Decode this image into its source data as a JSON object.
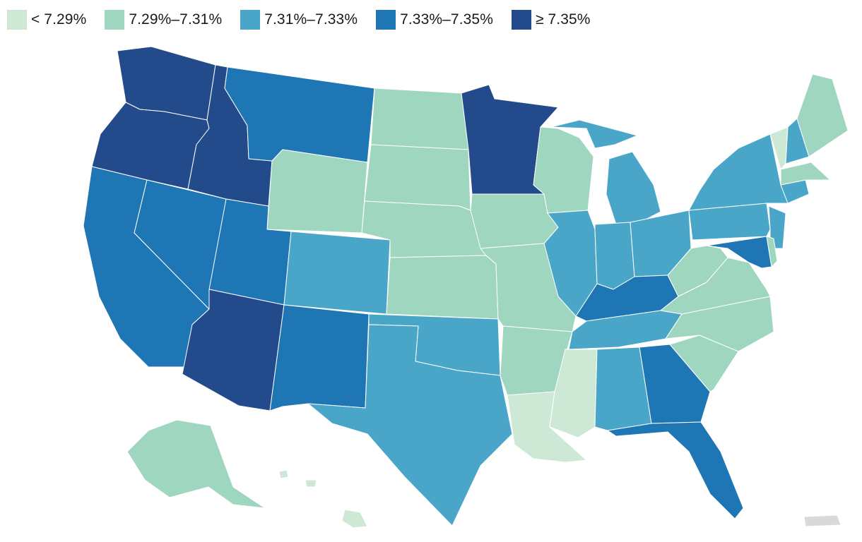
{
  "legend": {
    "bins": [
      {
        "label": "< 7.29%",
        "color": "#cde9d6"
      },
      {
        "label": "7.29%–7.31%",
        "color": "#9fd6c0"
      },
      {
        "label": "7.31%–7.33%",
        "color": "#4aa6c9"
      },
      {
        "label": "7.33%–7.35%",
        "color": "#1f76b4"
      },
      {
        "label": "≥ 7.35%",
        "color": "#234a8b"
      }
    ]
  },
  "no_data_color": "#d9d9d9",
  "chart_data": {
    "type": "choropleth",
    "region": "United States",
    "legend_position": "top-left",
    "categories": [
      "< 7.29%",
      "7.29%–7.31%",
      "7.31%–7.33%",
      "7.33%–7.35%",
      "≥ 7.35%"
    ],
    "states": {
      "WA": 4,
      "OR": 4,
      "ID": 4,
      "MN": 4,
      "AZ": 4,
      "MT": 3,
      "NV": 3,
      "CA": 3,
      "UT": 3,
      "NM": 3,
      "KY": 3,
      "GA": 3,
      "FL": 3,
      "MD": 3,
      "CO": 2,
      "TX": 2,
      "OK": 2,
      "IL": 2,
      "IN": 2,
      "OH": 2,
      "MI": 2,
      "TN": 2,
      "AL": 2,
      "PA": 2,
      "NY": 2,
      "NJ": 2,
      "CT": 2,
      "NH": 2,
      "ND": 1,
      "SD": 1,
      "NE": 1,
      "KS": 1,
      "WY": 1,
      "IA": 1,
      "MO": 1,
      "AR": 1,
      "WI": 1,
      "WV": 1,
      "VA": 1,
      "NC": 1,
      "SC": 1,
      "ME": 1,
      "MA": 1,
      "DE": 1,
      "AK": 1,
      "LA": 0,
      "MS": 0,
      "VT": 0,
      "HI": 0,
      "PR": null
    }
  }
}
